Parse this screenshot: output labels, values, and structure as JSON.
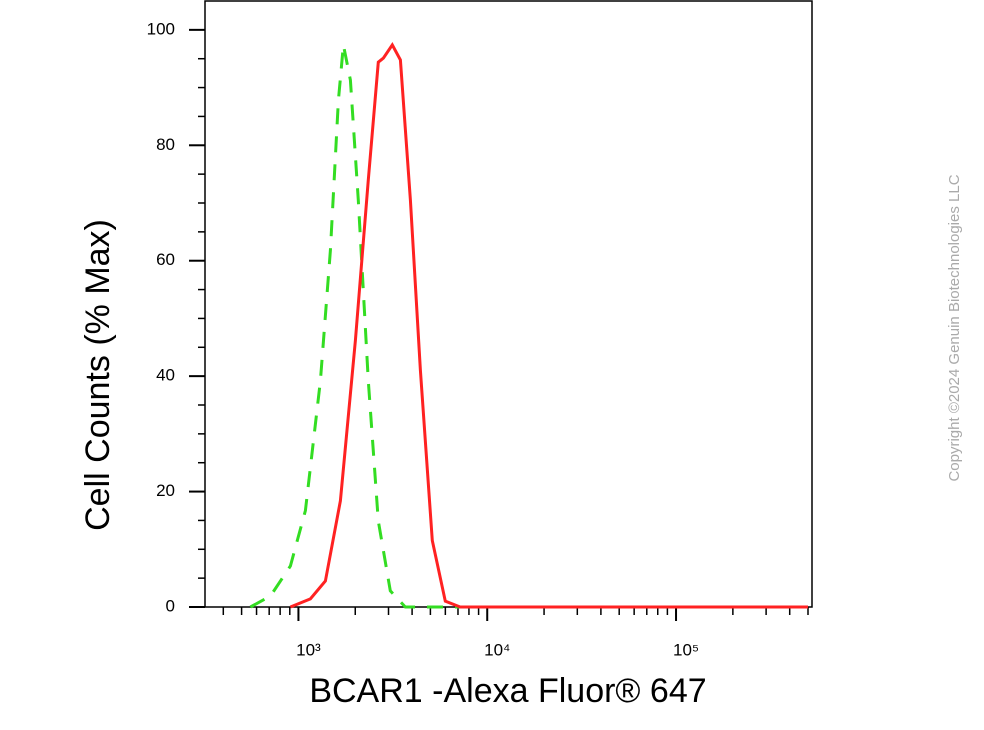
{
  "chart_data": {
    "type": "line",
    "x_label": "BCAR1 -Alexa Fluor® 647",
    "y_label": "Cell Counts (% Max)",
    "copyright": "Copyright ©2024 Genuin Biotechnologies LLC",
    "x_scale": "log",
    "xlim": [
      320,
      525000
    ],
    "ylim": [
      0,
      105
    ],
    "xticks": [
      {
        "value": 1000,
        "label": "10³"
      },
      {
        "value": 10000,
        "label": "10⁴"
      },
      {
        "value": 100000,
        "label": "10⁵"
      }
    ],
    "xminorticks": [
      400,
      500,
      600,
      700,
      800,
      900,
      2000,
      3000,
      4000,
      5000,
      6000,
      7000,
      8000,
      9000,
      20000,
      30000,
      40000,
      50000,
      60000,
      70000,
      80000,
      90000,
      200000,
      300000,
      400000,
      500000
    ],
    "yticks": [
      0,
      20,
      40,
      60,
      80,
      100
    ],
    "yminorticks": [
      5,
      10,
      15,
      25,
      30,
      35,
      45,
      50,
      55,
      65,
      70,
      75,
      85,
      90,
      95
    ],
    "series": [
      {
        "color": "#33dd22",
        "dashed": true,
        "x": [
          557,
          711,
          907,
          1089,
          1307,
          1476,
          1628,
          1730,
          1884,
          2076,
          2345,
          2648,
          3066,
          3683,
          500000
        ],
        "values": [
          0,
          1.9,
          7.1,
          16.7,
          39.2,
          61.8,
          87.8,
          97.4,
          91.3,
          70.5,
          39.2,
          14.9,
          2.8,
          0,
          0
        ]
      },
      {
        "color": "#ff2222",
        "dashed": false,
        "x": [
          907,
          1157,
          1389,
          1668,
          2003,
          2345,
          2648,
          2818,
          3141,
          3467,
          3916,
          4426,
          5120,
          5998,
          7194,
          500000
        ],
        "values": [
          0,
          1.4,
          4.5,
          18.4,
          46.2,
          74,
          94.4,
          95.1,
          97.4,
          94.8,
          70.5,
          41,
          11.5,
          1,
          0,
          0
        ]
      }
    ]
  }
}
